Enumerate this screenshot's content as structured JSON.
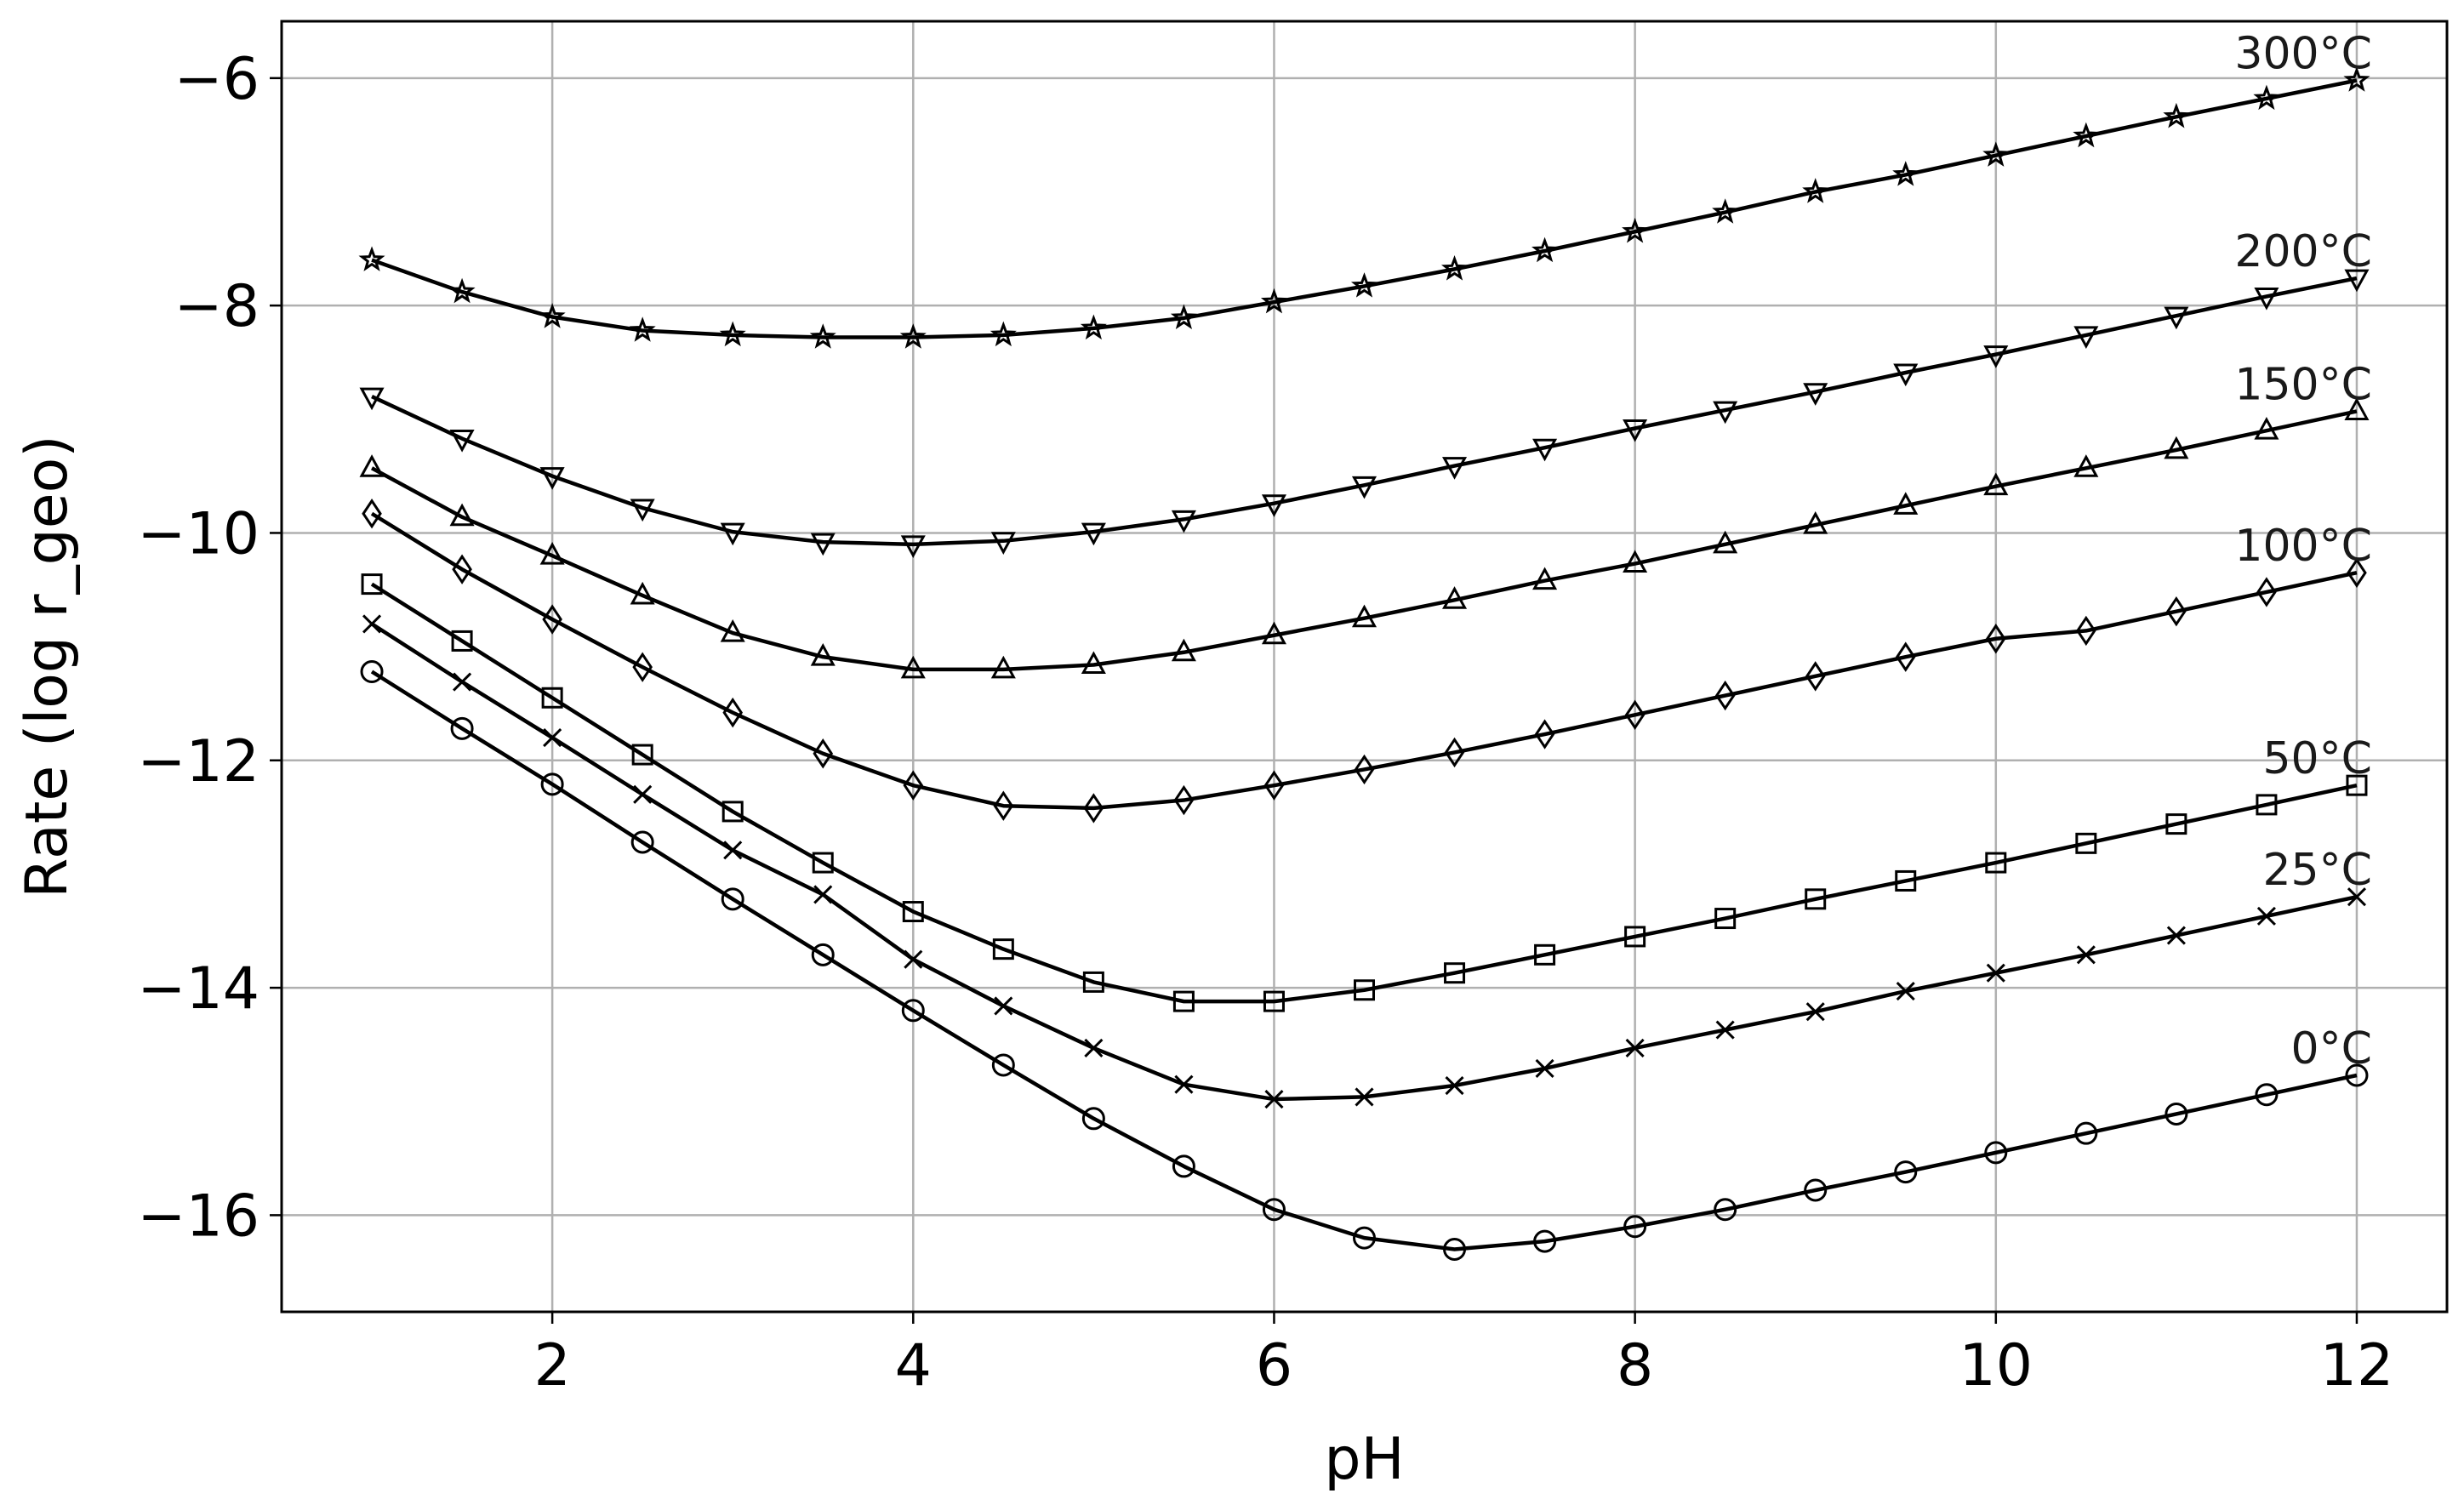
{
  "chart_data": {
    "type": "line",
    "xlabel": "pH",
    "ylabel": "Rate (log r_geo)",
    "xlim": [
      0.5,
      12.5
    ],
    "ylim": [
      -16.85,
      -5.5
    ],
    "xticks": [
      2,
      4,
      6,
      8,
      10,
      12
    ],
    "yticks": [
      -16,
      -14,
      -12,
      -10,
      -8,
      -6
    ],
    "xtick_labels": [
      "2",
      "4",
      "6",
      "8",
      "10",
      "12"
    ],
    "ytick_labels": [
      "−16",
      "−14",
      "−12",
      "−10",
      "−8",
      "−6"
    ],
    "grid": true,
    "legend": "none",
    "x": [
      1,
      1.5,
      2,
      2.5,
      3,
      3.5,
      4,
      4.5,
      5,
      5.5,
      6,
      6.5,
      7,
      7.5,
      8,
      8.5,
      9,
      9.5,
      10,
      10.5,
      11,
      11.5,
      12
    ],
    "series": [
      {
        "name": "300°C",
        "marker": "star",
        "values": [
          -7.6,
          -7.88,
          -8.1,
          -8.22,
          -8.26,
          -8.28,
          -8.28,
          -8.26,
          -8.2,
          -8.11,
          -7.97,
          -7.83,
          -7.68,
          -7.52,
          -7.35,
          -7.18,
          -7.0,
          -6.85,
          -6.68,
          -6.51,
          -6.34,
          -6.18,
          -6.02
        ]
      },
      {
        "name": "200°C",
        "marker": "triangle-down",
        "values": [
          -8.8,
          -9.17,
          -9.5,
          -9.78,
          -9.99,
          -10.08,
          -10.1,
          -10.07,
          -9.99,
          -9.88,
          -9.74,
          -9.58,
          -9.41,
          -9.25,
          -9.08,
          -8.92,
          -8.76,
          -8.59,
          -8.43,
          -8.26,
          -8.09,
          -7.92,
          -7.76
        ]
      },
      {
        "name": "150°C",
        "marker": "triangle-up",
        "values": [
          -9.43,
          -9.86,
          -10.2,
          -10.55,
          -10.88,
          -11.09,
          -11.2,
          -11.2,
          -11.16,
          -11.05,
          -10.9,
          -10.75,
          -10.59,
          -10.42,
          -10.27,
          -10.1,
          -9.93,
          -9.76,
          -9.59,
          -9.43,
          -9.27,
          -9.1,
          -8.93
        ]
      },
      {
        "name": "100°C",
        "marker": "diamond",
        "values": [
          -9.83,
          -10.32,
          -10.76,
          -11.18,
          -11.58,
          -11.94,
          -12.22,
          -12.4,
          -12.42,
          -12.35,
          -12.22,
          -12.08,
          -11.93,
          -11.77,
          -11.6,
          -11.43,
          -11.26,
          -11.09,
          -10.93,
          -10.86,
          -10.69,
          -10.52,
          -10.35
        ]
      },
      {
        "name": "50°C",
        "marker": "square",
        "values": [
          -10.45,
          -10.95,
          -11.45,
          -11.95,
          -12.45,
          -12.9,
          -13.33,
          -13.66,
          -13.95,
          -14.12,
          -14.12,
          -14.02,
          -13.87,
          -13.71,
          -13.55,
          -13.39,
          -13.22,
          -13.06,
          -12.9,
          -12.73,
          -12.56,
          -12.39,
          -12.22
        ]
      },
      {
        "name": "25°C",
        "marker": "x",
        "values": [
          -10.8,
          -11.31,
          -11.8,
          -12.3,
          -12.79,
          -13.18,
          -13.75,
          -14.16,
          -14.53,
          -14.85,
          -14.98,
          -14.96,
          -14.86,
          -14.71,
          -14.53,
          -14.37,
          -14.21,
          -14.03,
          -13.87,
          -13.71,
          -13.54,
          -13.37,
          -13.2
        ]
      },
      {
        "name": "0°C",
        "marker": "circle",
        "values": [
          -11.22,
          -11.72,
          -12.21,
          -12.72,
          -13.22,
          -13.71,
          -14.2,
          -14.68,
          -15.15,
          -15.57,
          -15.95,
          -16.2,
          -16.3,
          -16.23,
          -16.1,
          -15.95,
          -15.78,
          -15.62,
          -15.45,
          -15.28,
          -15.11,
          -14.94,
          -14.77
        ]
      }
    ]
  }
}
